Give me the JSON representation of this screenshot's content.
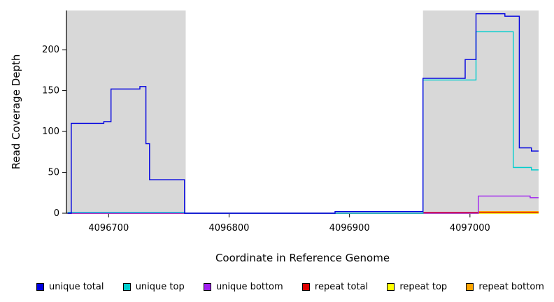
{
  "figure": {
    "background": "#ffffff",
    "region_highlight_color": "#d8d8d8",
    "axis_color": "#000000"
  },
  "chart_data": {
    "type": "line",
    "title": "",
    "xlabel": "Coordinate in Reference Genome",
    "ylabel": "Read Coverage Depth",
    "xlim": [
      4096665,
      4097057
    ],
    "ylim": [
      0,
      248
    ],
    "xticks": [
      4096700,
      4096800,
      4096900,
      4097000
    ],
    "yticks": [
      0,
      50,
      100,
      150,
      200
    ],
    "grid": false,
    "legend_position": "bottom",
    "shaded_regions": [
      {
        "x0": 4096665,
        "x1": 4096764,
        "color": "#d8d8d8"
      },
      {
        "x0": 4096961,
        "x1": 4097057,
        "color": "#d8d8d8"
      }
    ],
    "series": [
      {
        "name": "unique total",
        "color": "#0000e0",
        "points": [
          [
            4096666,
            0
          ],
          [
            4096669,
            0
          ],
          [
            4096669,
            110
          ],
          [
            4096696,
            110
          ],
          [
            4096696,
            112
          ],
          [
            4096702,
            112
          ],
          [
            4096702,
            152
          ],
          [
            4096726,
            152
          ],
          [
            4096726,
            155
          ],
          [
            4096731,
            155
          ],
          [
            4096731,
            85
          ],
          [
            4096734,
            85
          ],
          [
            4096734,
            41
          ],
          [
            4096763,
            41
          ],
          [
            4096763,
            0
          ],
          [
            4096888,
            0
          ],
          [
            4096888,
            2
          ],
          [
            4096961,
            2
          ],
          [
            4096961,
            165
          ],
          [
            4096996,
            165
          ],
          [
            4096996,
            188
          ],
          [
            4097005,
            188
          ],
          [
            4097005,
            244
          ],
          [
            4097029,
            244
          ],
          [
            4097029,
            241
          ],
          [
            4097041,
            241
          ],
          [
            4097041,
            80
          ],
          [
            4097051,
            80
          ],
          [
            4097051,
            76
          ],
          [
            4097057,
            76
          ]
        ]
      },
      {
        "name": "unique top",
        "color": "#00cdcd",
        "points": [
          [
            4096666,
            1
          ],
          [
            4096763,
            1
          ],
          [
            4096763,
            0
          ],
          [
            4096961,
            0
          ],
          [
            4096961,
            163
          ],
          [
            4097005,
            163
          ],
          [
            4097005,
            222
          ],
          [
            4097036,
            222
          ],
          [
            4097036,
            56
          ],
          [
            4097051,
            56
          ],
          [
            4097051,
            53
          ],
          [
            4097057,
            53
          ]
        ]
      },
      {
        "name": "unique bottom",
        "color": "#a020f0",
        "points": [
          [
            4096666,
            0
          ],
          [
            4097007,
            0
          ],
          [
            4097007,
            21
          ],
          [
            4097050,
            21
          ],
          [
            4097050,
            19
          ],
          [
            4097057,
            19
          ]
        ]
      },
      {
        "name": "repeat total",
        "color": "#dd0000",
        "points": [
          [
            4096666,
            0
          ],
          [
            4096961,
            0
          ],
          [
            4096961,
            1
          ],
          [
            4097057,
            1
          ]
        ]
      },
      {
        "name": "repeat top",
        "color": "#ffff00",
        "points": [
          [
            4096666,
            0
          ],
          [
            4097057,
            0
          ]
        ]
      },
      {
        "name": "repeat bottom",
        "color": "#ffa500",
        "points": [
          [
            4096666,
            0
          ],
          [
            4097007,
            0
          ],
          [
            4097007,
            2
          ],
          [
            4097057,
            2
          ]
        ]
      }
    ]
  }
}
